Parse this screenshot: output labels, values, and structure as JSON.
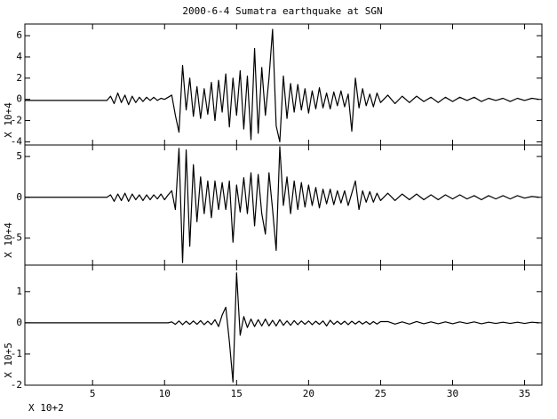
{
  "chart_data": [
    {
      "type": "line",
      "title": "2000-6-4 Sumatra earthquake at SGN",
      "ylabel": "X 10+4",
      "color": "#000000",
      "x": [
        0.3,
        6,
        6.25,
        6.5,
        6.75,
        7,
        7.25,
        7.5,
        7.75,
        8,
        8.25,
        8.5,
        8.75,
        9,
        9.25,
        9.5,
        9.75,
        10,
        10.25,
        10.5,
        10.75,
        11,
        11.25,
        11.5,
        11.75,
        12,
        12.25,
        12.5,
        12.75,
        13,
        13.25,
        13.5,
        13.75,
        14,
        14.25,
        14.5,
        14.75,
        15,
        15.25,
        15.5,
        15.75,
        16,
        16.25,
        16.5,
        16.75,
        17,
        17.25,
        17.5,
        17.75,
        18,
        18.25,
        18.5,
        18.75,
        19,
        19.25,
        19.5,
        19.75,
        20,
        20.25,
        20.5,
        20.75,
        21,
        21.25,
        21.5,
        21.75,
        22,
        22.25,
        22.5,
        22.75,
        23,
        23.25,
        23.5,
        23.75,
        24,
        24.25,
        24.5,
        24.75,
        25,
        25.5,
        26,
        26.5,
        27,
        27.5,
        28,
        28.5,
        29,
        29.5,
        30,
        30.5,
        31,
        31.5,
        32,
        32.5,
        33,
        33.5,
        34,
        34.5,
        35,
        35.5,
        36
      ],
      "values": [
        -0.1,
        -0.1,
        0.3,
        -0.4,
        0.6,
        -0.3,
        0.4,
        -0.5,
        0.3,
        -0.3,
        0.2,
        -0.2,
        0.2,
        -0.1,
        0.2,
        -0.1,
        0.1,
        0.0,
        0.2,
        0.4,
        -1.5,
        -3.1,
        3.2,
        -1.0,
        2.0,
        -1.6,
        1.2,
        -1.8,
        1.0,
        -1.4,
        1.6,
        -2.0,
        1.8,
        -1.2,
        2.4,
        -2.6,
        2.0,
        -1.5,
        2.7,
        -2.8,
        2.2,
        -3.8,
        4.8,
        -3.2,
        3.0,
        -1.5,
        2.0,
        6.6,
        -2.5,
        -4.0,
        2.2,
        -1.8,
        1.5,
        -1.2,
        1.4,
        -1.0,
        1.0,
        -1.3,
        0.8,
        -0.9,
        1.1,
        -0.8,
        0.6,
        -0.9,
        0.7,
        -0.6,
        0.8,
        -0.7,
        0.5,
        -3.0,
        2.0,
        -0.8,
        1.0,
        -0.6,
        0.5,
        -0.7,
        0.6,
        -0.3,
        0.4,
        -0.4,
        0.3,
        -0.3,
        0.3,
        -0.2,
        0.2,
        -0.3,
        0.2,
        -0.2,
        0.2,
        -0.1,
        0.2,
        -0.2,
        0.1,
        -0.1,
        0.1,
        -0.2,
        0.1,
        -0.1,
        0.1,
        0.0
      ],
      "xlim": [
        0.3,
        36.2
      ],
      "ylim": [
        -4.3,
        7.1
      ],
      "yticks": [
        -4,
        -2,
        0,
        2,
        4,
        6
      ]
    },
    {
      "type": "line",
      "ylabel": "X 10+4",
      "color": "#000000",
      "x": [
        0.3,
        6,
        6.25,
        6.5,
        6.75,
        7,
        7.25,
        7.5,
        7.75,
        8,
        8.25,
        8.5,
        8.75,
        9,
        9.25,
        9.5,
        9.75,
        10,
        10.25,
        10.5,
        10.75,
        11,
        11.25,
        11.5,
        11.75,
        12,
        12.25,
        12.5,
        12.75,
        13,
        13.25,
        13.5,
        13.75,
        14,
        14.25,
        14.5,
        14.75,
        15,
        15.25,
        15.5,
        15.75,
        16,
        16.25,
        16.5,
        16.75,
        17,
        17.25,
        17.5,
        17.75,
        18,
        18.25,
        18.5,
        18.75,
        19,
        19.25,
        19.5,
        19.75,
        20,
        20.25,
        20.5,
        20.75,
        21,
        21.25,
        21.5,
        21.75,
        22,
        22.25,
        22.5,
        22.75,
        23,
        23.25,
        23.5,
        23.75,
        24,
        24.25,
        24.5,
        24.75,
        25,
        25.5,
        26,
        26.5,
        27,
        27.5,
        28,
        28.5,
        29,
        29.5,
        30,
        30.5,
        31,
        31.5,
        32,
        32.5,
        33,
        33.5,
        34,
        34.5,
        35,
        35.5,
        36
      ],
      "values": [
        0,
        0,
        0.3,
        -0.5,
        0.4,
        -0.4,
        0.5,
        -0.5,
        0.4,
        -0.3,
        0.3,
        -0.4,
        0.3,
        -0.3,
        0.3,
        -0.2,
        0.4,
        -0.3,
        0.3,
        0.8,
        -1.5,
        6.0,
        -8.0,
        5.8,
        -6.0,
        4.0,
        -3.0,
        2.5,
        -2.0,
        2.0,
        -2.5,
        2.0,
        -1.5,
        1.8,
        -1.5,
        2.0,
        -5.5,
        1.5,
        -1.8,
        2.4,
        -2.0,
        3.0,
        -3.5,
        2.8,
        -2.0,
        -4.5,
        3.0,
        -1.5,
        -6.5,
        6.2,
        -1.0,
        2.5,
        -2.0,
        2.0,
        -1.5,
        1.8,
        -1.2,
        1.5,
        -1.0,
        1.2,
        -1.3,
        1.0,
        -0.8,
        1.0,
        -0.9,
        0.8,
        -0.7,
        0.8,
        -1.0,
        0.5,
        2.0,
        -1.5,
        0.8,
        -0.6,
        0.7,
        -0.6,
        0.5,
        -0.4,
        0.5,
        -0.4,
        0.4,
        -0.3,
        0.4,
        -0.3,
        0.3,
        -0.3,
        0.3,
        -0.2,
        0.3,
        -0.2,
        0.2,
        -0.3,
        0.2,
        -0.2,
        0.2,
        -0.2,
        0.2,
        -0.1,
        0.1,
        0.0
      ],
      "xlim": [
        0.3,
        36.2
      ],
      "ylim": [
        -8.3,
        6.4
      ],
      "yticks": [
        -5,
        0,
        5
      ]
    },
    {
      "type": "line",
      "ylabel": "X 10+5",
      "xlabel": "X 10+2",
      "color": "#000000",
      "x": [
        0.3,
        6,
        6.25,
        6.5,
        6.75,
        7,
        7.25,
        7.5,
        7.75,
        8,
        8.25,
        8.5,
        8.75,
        9,
        9.25,
        9.5,
        9.75,
        10,
        10.25,
        10.5,
        10.75,
        11,
        11.25,
        11.5,
        11.75,
        12,
        12.25,
        12.5,
        12.75,
        13,
        13.25,
        13.5,
        13.75,
        14,
        14.25,
        14.5,
        14.75,
        15,
        15.25,
        15.5,
        15.75,
        16,
        16.25,
        16.5,
        16.75,
        17,
        17.25,
        17.5,
        17.75,
        18,
        18.25,
        18.5,
        18.75,
        19,
        19.25,
        19.5,
        19.75,
        20,
        20.25,
        20.5,
        20.75,
        21,
        21.25,
        21.5,
        21.75,
        22,
        22.25,
        22.5,
        22.75,
        23,
        23.25,
        23.5,
        23.75,
        24,
        24.25,
        24.5,
        24.75,
        25,
        25.5,
        26,
        26.5,
        27,
        27.5,
        28,
        28.5,
        29,
        29.5,
        30,
        30.5,
        31,
        31.5,
        32,
        32.5,
        33,
        33.5,
        34,
        34.5,
        35,
        35.5,
        36
      ],
      "values": [
        0,
        0,
        0,
        0,
        0,
        0,
        0,
        0,
        0,
        0,
        0,
        0,
        0,
        0,
        0,
        0,
        0,
        0,
        0,
        0.03,
        -0.05,
        0.06,
        -0.06,
        0.05,
        -0.05,
        0.06,
        -0.05,
        0.07,
        -0.06,
        0.05,
        -0.06,
        0.1,
        -0.12,
        0.25,
        0.5,
        -0.6,
        -1.9,
        1.6,
        -0.4,
        0.2,
        -0.15,
        0.12,
        -0.12,
        0.1,
        -0.1,
        0.12,
        -0.1,
        0.08,
        -0.1,
        0.1,
        -0.08,
        0.06,
        -0.08,
        0.07,
        -0.06,
        0.06,
        -0.05,
        0.06,
        -0.06,
        0.05,
        -0.05,
        0.06,
        -0.1,
        0.08,
        -0.05,
        0.05,
        -0.05,
        0.05,
        -0.06,
        0.05,
        -0.04,
        0.05,
        -0.04,
        0.04,
        -0.05,
        0.04,
        -0.04,
        0.04,
        0.04,
        -0.04,
        0.03,
        -0.04,
        0.04,
        -0.03,
        0.03,
        -0.03,
        0.03,
        -0.03,
        0.03,
        -0.02,
        0.03,
        -0.03,
        0.02,
        -0.02,
        0.02,
        -0.02,
        0.02,
        -0.02,
        0.02,
        0.0
      ],
      "xlim": [
        0.3,
        36.2
      ],
      "ylim": [
        -2,
        1.85
      ],
      "yticks": [
        -2,
        -1,
        0,
        1
      ],
      "xticks": [
        5,
        10,
        15,
        20,
        25,
        30,
        35
      ]
    }
  ]
}
